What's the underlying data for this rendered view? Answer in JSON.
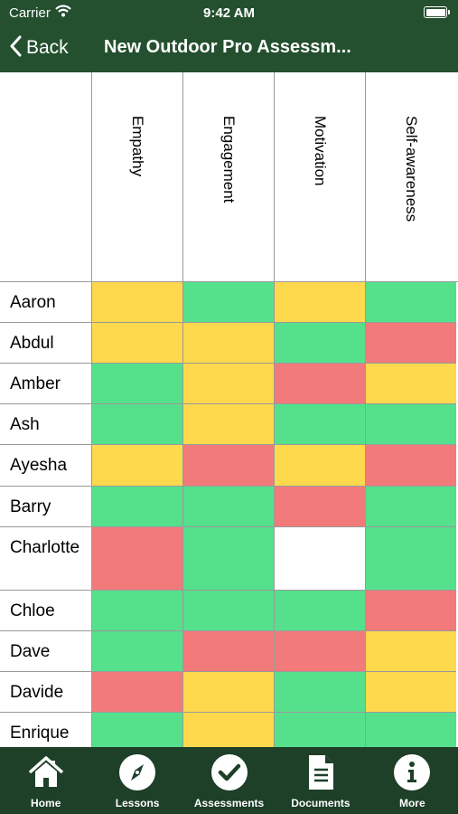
{
  "status": {
    "carrier": "Carrier",
    "time": "9:42 AM"
  },
  "nav": {
    "back_label": "Back",
    "title": "New Outdoor Pro Assessm..."
  },
  "columns": [
    "Empathy",
    "Engagement",
    "Motivation",
    "Self-awareness"
  ],
  "colors": {
    "green": "#55e08b",
    "yellow": "#fed84d",
    "red": "#f27a7a",
    "white": "#ffffff",
    "header_bg": "#24502f",
    "tab_bg": "#1e3f28"
  },
  "rows": [
    {
      "name": "Aaron",
      "cells": [
        "yellow",
        "green",
        "yellow",
        "green"
      ]
    },
    {
      "name": "Abdul",
      "cells": [
        "yellow",
        "yellow",
        "green",
        "red"
      ]
    },
    {
      "name": "Amber",
      "cells": [
        "green",
        "yellow",
        "red",
        "yellow"
      ]
    },
    {
      "name": "Ash",
      "cells": [
        "green",
        "yellow",
        "green",
        "green"
      ]
    },
    {
      "name": "Ayesha",
      "cells": [
        "yellow",
        "red",
        "yellow",
        "red"
      ]
    },
    {
      "name": "Barry",
      "cells": [
        "green",
        "green",
        "red",
        "green"
      ]
    },
    {
      "name": "Charlotte",
      "cells": [
        "red",
        "green",
        "white",
        "green"
      ]
    },
    {
      "name": "Chloe",
      "cells": [
        "green",
        "green",
        "green",
        "red"
      ]
    },
    {
      "name": "Dave",
      "cells": [
        "green",
        "red",
        "red",
        "yellow"
      ]
    },
    {
      "name": "Davide",
      "cells": [
        "red",
        "yellow",
        "green",
        "yellow"
      ]
    },
    {
      "name": "Enrique",
      "cells": [
        "green",
        "yellow",
        "green",
        "green"
      ]
    }
  ],
  "tabs": [
    {
      "label": "Home",
      "icon": "home-icon"
    },
    {
      "label": "Lessons",
      "icon": "compass-icon"
    },
    {
      "label": "Assessments",
      "icon": "checkmark-icon"
    },
    {
      "label": "Documents",
      "icon": "document-icon"
    },
    {
      "label": "More",
      "icon": "info-icon"
    }
  ]
}
